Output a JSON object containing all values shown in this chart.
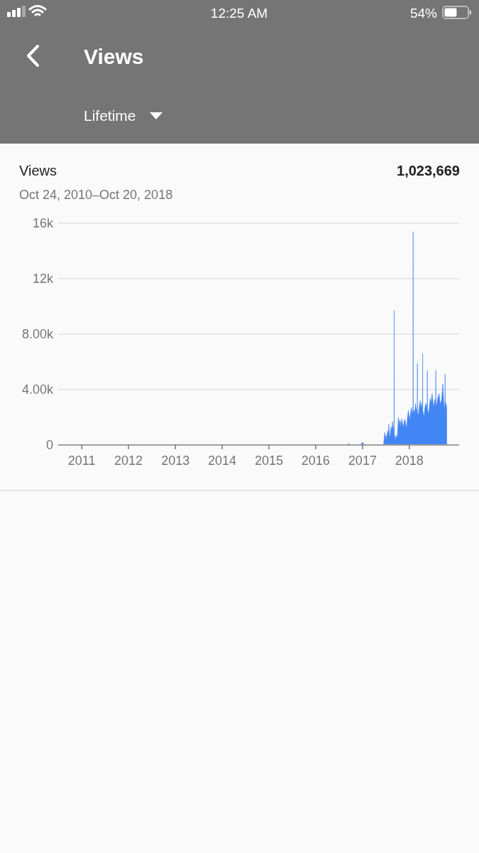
{
  "chart_data": {
    "type": "area",
    "title": "Views",
    "subtitle": "Oct 24, 2010–Oct 20, 2018",
    "annotations": [
      "12:25 AM",
      "54%",
      "Views",
      "Lifetime",
      "1,023,669"
    ],
    "color": "#4285f4",
    "grid": "y",
    "xlim": [
      "2010-07-01",
      "2019-01-25"
    ],
    "xticks": [
      {
        "value": "2011-01-01",
        "label": "2011"
      },
      {
        "value": "2012-01-01",
        "label": "2012"
      },
      {
        "value": "2013-01-01",
        "label": "2013"
      },
      {
        "value": "2014-01-01",
        "label": "2014"
      },
      {
        "value": "2015-01-01",
        "label": "2015"
      },
      {
        "value": "2016-01-01",
        "label": "2016"
      },
      {
        "value": "2017-01-01",
        "label": "2017"
      },
      {
        "value": "2018-01-01",
        "label": "2018"
      }
    ],
    "ylim": [
      0,
      16000
    ],
    "yticks": [
      0,
      {
        "value": 4000,
        "label": "4.00k"
      },
      {
        "value": 8000,
        "label": "8.00k"
      },
      {
        "value": 12000,
        "label": "12k"
      },
      {
        "value": 16000,
        "label": "16k"
      }
    ],
    "x": [
      "2010-10-24",
      "2016-09-10",
      "2016-09-14",
      "2016-09-18",
      "2016-12-18",
      "2016-12-24",
      "2017-01-04",
      "2017-01-12",
      "2017-06-14",
      "2017-06-18",
      "2017-06-23",
      "2017-06-28",
      "2017-07-03",
      "2017-07-08",
      "2017-07-14",
      "2017-07-20",
      "2017-07-26",
      "2017-07-30",
      "2017-08-04",
      "2017-08-09",
      "2017-08-13",
      "2017-08-18",
      "2017-08-22",
      "2017-08-28",
      "2017-09-04",
      "2017-09-05",
      "2017-09-06",
      "2017-09-10",
      "2017-09-16",
      "2017-09-22",
      "2017-09-29",
      "2017-10-03",
      "2017-10-08",
      "2017-10-14",
      "2017-10-18",
      "2017-10-23",
      "2017-10-29",
      "2017-11-04",
      "2017-11-10",
      "2017-11-17",
      "2017-11-22",
      "2017-11-28",
      "2017-12-04",
      "2017-12-11",
      "2017-12-18",
      "2017-12-25",
      "2017-12-30",
      "2018-01-05",
      "2018-01-11",
      "2018-01-18",
      "2018-01-24",
      "2018-01-30",
      "2018-01-31",
      "2018-02-01",
      "2018-02-07",
      "2018-02-12",
      "2018-02-18",
      "2018-02-24",
      "2018-03-04",
      "2018-03-05",
      "2018-03-06",
      "2018-03-14",
      "2018-03-20",
      "2018-03-27",
      "2018-04-03",
      "2018-04-09",
      "2018-04-14",
      "2018-04-15",
      "2018-04-16",
      "2018-04-26",
      "2018-05-02",
      "2018-05-09",
      "2018-05-15",
      "2018-05-21",
      "2018-05-22",
      "2018-05-23",
      "2018-06-02",
      "2018-06-08",
      "2018-06-15",
      "2018-06-21",
      "2018-06-28",
      "2018-07-05",
      "2018-07-12",
      "2018-07-19",
      "2018-07-26",
      "2018-07-27",
      "2018-07-28",
      "2018-08-02",
      "2018-08-08",
      "2018-08-14",
      "2018-08-21",
      "2018-08-28",
      "2018-09-06",
      "2018-09-13",
      "2018-09-20",
      "2018-09-26",
      "2018-10-03",
      "2018-10-07",
      "2018-10-08",
      "2018-10-09",
      "2018-10-14",
      "2018-10-20"
    ],
    "values": [
      0,
      0,
      150,
      0,
      0,
      120,
      180,
      0,
      0,
      400,
      900,
      500,
      700,
      300,
      1000,
      800,
      1500,
      700,
      560,
      1100,
      1300,
      1000,
      1700,
      1200,
      1400,
      9700,
      800,
      600,
      400,
      700,
      500,
      1200,
      2000,
      1400,
      1800,
      1700,
      1300,
      1900,
      1500,
      1300,
      1700,
      1850,
      1500,
      1250,
      2000,
      2500,
      2100,
      1850,
      2300,
      2700,
      2200,
      2600,
      15400,
      2400,
      2500,
      2200,
      3000,
      2600,
      2500,
      5900,
      2300,
      2200,
      2800,
      3200,
      2600,
      3000,
      3100,
      6600,
      2500,
      2000,
      2600,
      3000,
      2700,
      3000,
      5350,
      2600,
      2200,
      2900,
      3400,
      3000,
      3700,
      3100,
      2700,
      3300,
      3200,
      5400,
      3000,
      2800,
      3200,
      3500,
      3700,
      3100,
      3000,
      3600,
      4400,
      3200,
      2400,
      3500,
      5100,
      3100,
      3000,
      2700
    ]
  }
}
